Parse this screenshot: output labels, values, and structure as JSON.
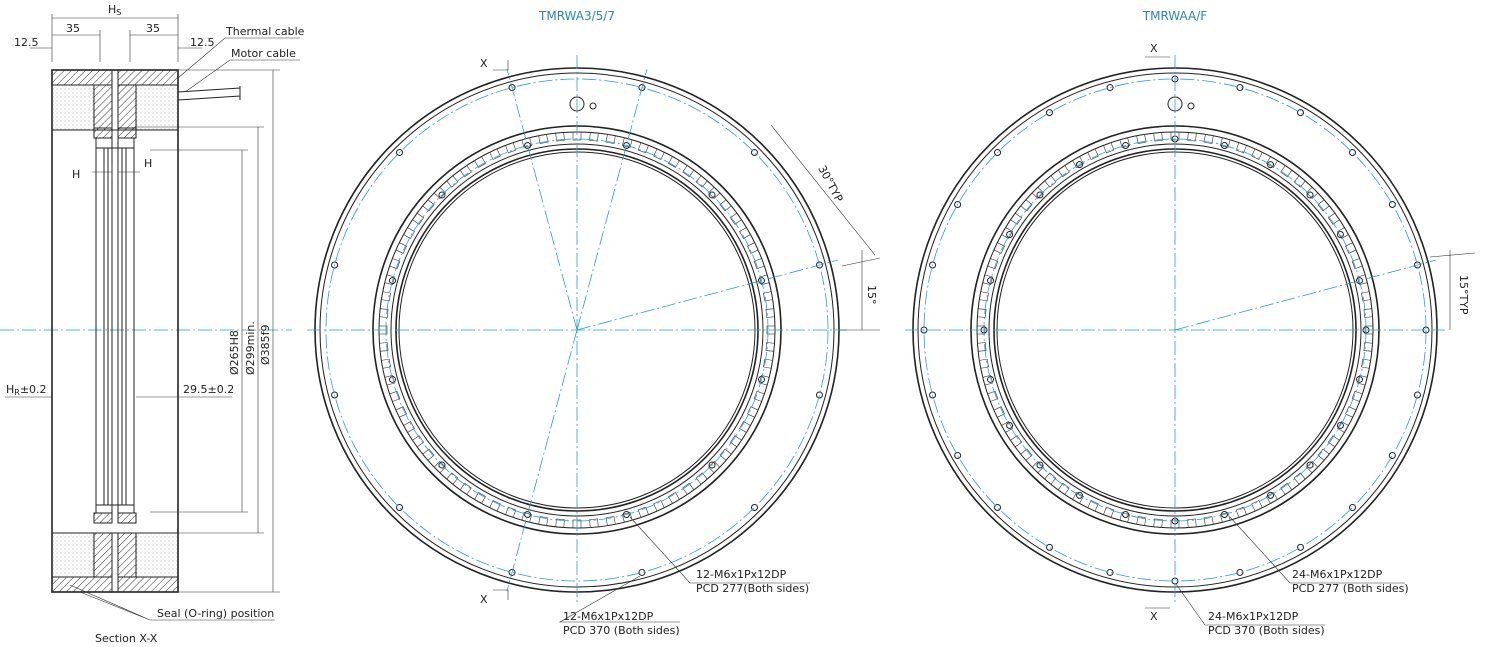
{
  "section": {
    "hs": {
      "main": "H",
      "sub": "S"
    },
    "dim_35_left": "35",
    "dim_35_right": "35",
    "dim_12_5_left": "12.5",
    "dim_12_5_right": "12.5",
    "thermal_cable": "Thermal cable",
    "motor_cable": "Motor cable",
    "h_left": "H",
    "h_right": "H",
    "d265": "Ø265H8",
    "d299": "Ø299min.",
    "d385": "Ø385f9",
    "hr": {
      "main": "H",
      "sub": "R",
      "tol": "±0.2"
    },
    "dim_29_5": "29.5±0.2",
    "seal": "Seal (O-ring) position",
    "caption": "Section X-X"
  },
  "view_a": {
    "title": "TMRWA3/5/7",
    "x_top": "X",
    "x_bottom": "X",
    "angle_30": "30°TYP",
    "angle_15": "15°",
    "inner_holes": {
      "spec": "12-M6x1Px12DP",
      "pcd": "PCD 277(Both sides)"
    },
    "outer_holes": {
      "spec": "12-M6x1Px12DP",
      "pcd": "PCD 370 (Both sides)"
    }
  },
  "view_b": {
    "title": "TMRWAA/F",
    "x_top": "X",
    "x_bottom": "X",
    "angle_15": "15°TYP",
    "inner_holes": {
      "spec": "24-M6x1Px12DP",
      "pcd": "PCD 277 (Both sides)"
    },
    "outer_holes": {
      "spec": "24-M6x1Px12DP",
      "pcd": "PCD 370 (Both sides)"
    }
  }
}
